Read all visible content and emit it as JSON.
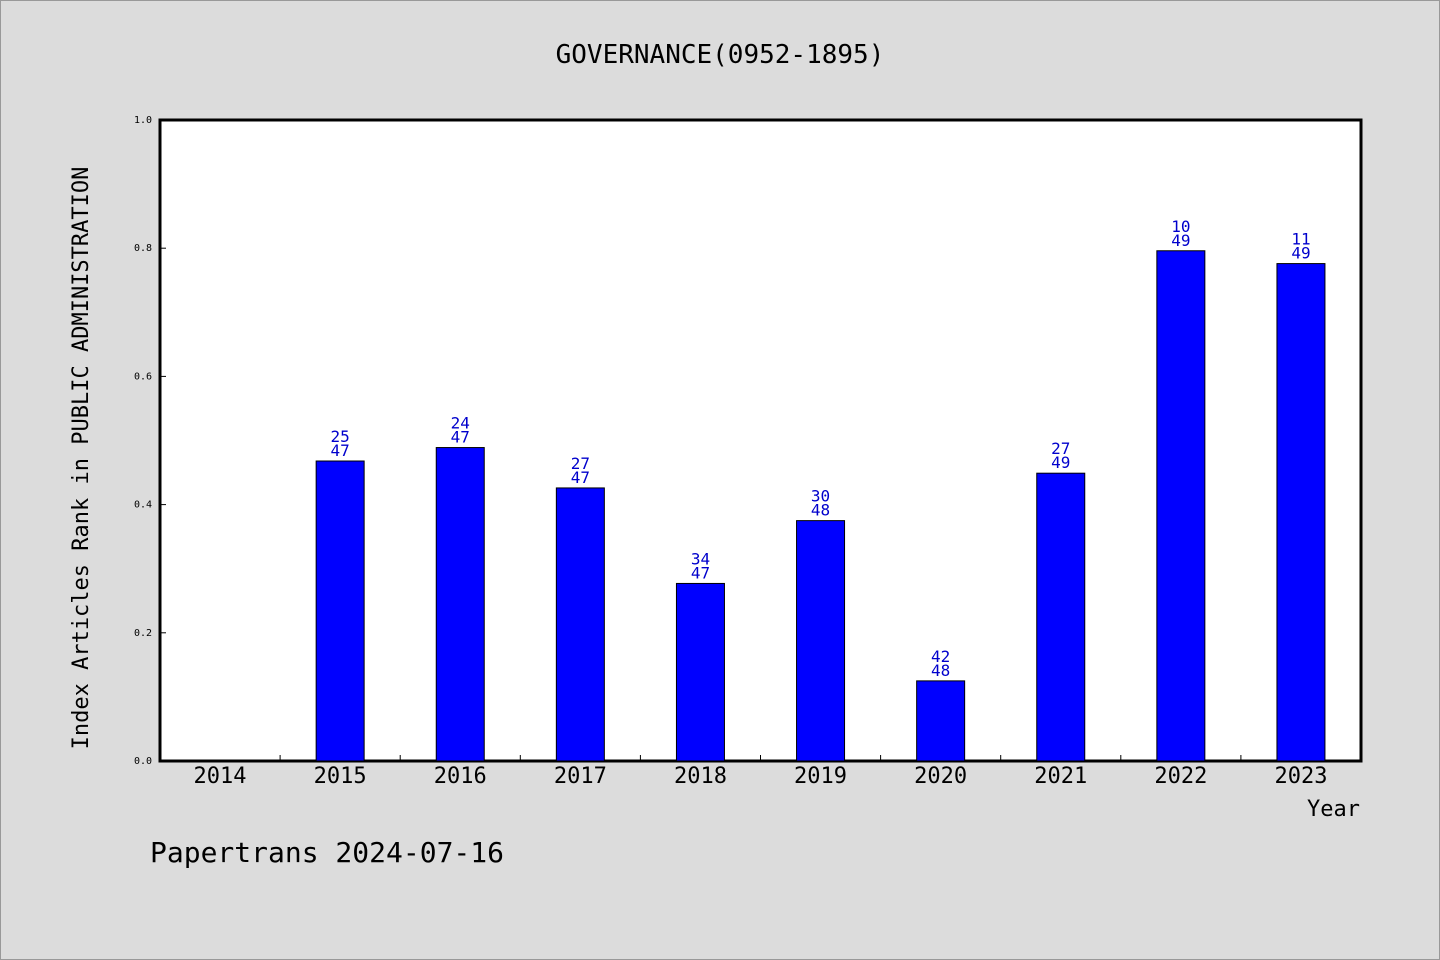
{
  "chart_data": {
    "type": "bar",
    "title": "GOVERNANCE(0952-1895)",
    "ylabel": "Index Articles Rank in PUBLIC ADMINISTRATION",
    "xlabel": "Year",
    "ylim": [
      0,
      1.0
    ],
    "yticks": [
      "0.0",
      "0.2",
      "0.4",
      "0.6",
      "0.8",
      "1.0"
    ],
    "categories": [
      "2014",
      "2015",
      "2016",
      "2017",
      "2018",
      "2019",
      "2020",
      "2021",
      "2022",
      "2023"
    ],
    "values": [
      null,
      0.468,
      0.489,
      0.426,
      0.277,
      0.375,
      0.125,
      0.449,
      0.796,
      0.776
    ],
    "labels_top": [
      "",
      "25",
      "24",
      "27",
      "34",
      "30",
      "42",
      "27",
      "10",
      "11"
    ],
    "labels_bottom": [
      "",
      "47",
      "47",
      "47",
      "47",
      "48",
      "48",
      "49",
      "49",
      "49"
    ],
    "bar_color": "#0000ff",
    "label_color": "#0000cc",
    "grid": false
  },
  "footer": {
    "text": "Papertrans 2024-07-16"
  }
}
